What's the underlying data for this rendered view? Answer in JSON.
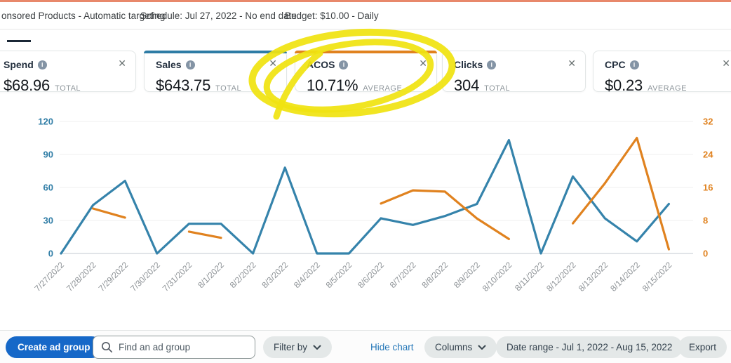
{
  "header": {
    "campaign": "onsored Products - Automatic targeting",
    "schedule": "Schedule: Jul 27, 2022 - No end date",
    "budget": "Budget: $10.00 - Daily"
  },
  "icons": {
    "info": "i",
    "close": "✕"
  },
  "cards": [
    {
      "title": "Spend",
      "value": "$68.96",
      "unit": "TOTAL",
      "accent": ""
    },
    {
      "title": "Sales",
      "value": "$643.75",
      "unit": "TOTAL",
      "accent": "#2e7ca5"
    },
    {
      "title": "ACOS",
      "value": "10.71%",
      "unit": "AVERAGE",
      "accent": "#e0821f"
    },
    {
      "title": "Clicks",
      "value": "304",
      "unit": "TOTAL",
      "accent": ""
    },
    {
      "title": "CPC",
      "value": "$0.23",
      "unit": "AVERAGE",
      "accent": ""
    }
  ],
  "annotation": {
    "type": "hand-drawn marker circle",
    "target": "ACOS card",
    "color": "#f0e311"
  },
  "chart_data": {
    "type": "line",
    "title": "",
    "xlabel": "",
    "ylabel": "",
    "grid": true,
    "legend": "none (metric cards act as legend)",
    "x": [
      "7/27/2022",
      "7/28/2022",
      "7/29/2022",
      "7/30/2022",
      "7/31/2022",
      "8/1/2022",
      "8/2/2022",
      "8/3/2022",
      "8/4/2022",
      "8/5/2022",
      "8/6/2022",
      "8/7/2022",
      "8/8/2022",
      "8/9/2022",
      "8/10/2022",
      "8/11/2022",
      "8/12/2022",
      "8/13/2022",
      "8/14/2022",
      "8/15/2022"
    ],
    "left_axis": {
      "ticks": [
        0,
        30,
        60,
        90,
        120
      ],
      "max": 120,
      "color": "#2e7ca5"
    },
    "right_axis": {
      "ticks": [
        0,
        8,
        16,
        24,
        32
      ],
      "max": 32,
      "color": "#e0821f"
    },
    "series": [
      {
        "name": "Sales",
        "axis": "left",
        "color": "#3583ab",
        "values": [
          0,
          44,
          66,
          0,
          27,
          27,
          0,
          78,
          0,
          0,
          32,
          26,
          34,
          45,
          103,
          0,
          70,
          32,
          11,
          45
        ]
      },
      {
        "name": "ACOS",
        "axis": "right",
        "color": "#e0821f",
        "values": [
          null,
          10.9,
          8.7,
          null,
          5.3,
          3.8,
          null,
          null,
          null,
          null,
          12.1,
          15.3,
          15,
          8.5,
          3.5,
          null,
          7.3,
          17,
          28,
          1
        ]
      }
    ]
  },
  "toolbar": {
    "create_button": "Create ad group",
    "search_placeholder": "Find an ad group",
    "filter_by": "Filter by",
    "hide_chart": "Hide chart",
    "columns": "Columns",
    "date_range": "Date range - Jul 1, 2022 - Aug 15, 2022",
    "export": "Export"
  }
}
